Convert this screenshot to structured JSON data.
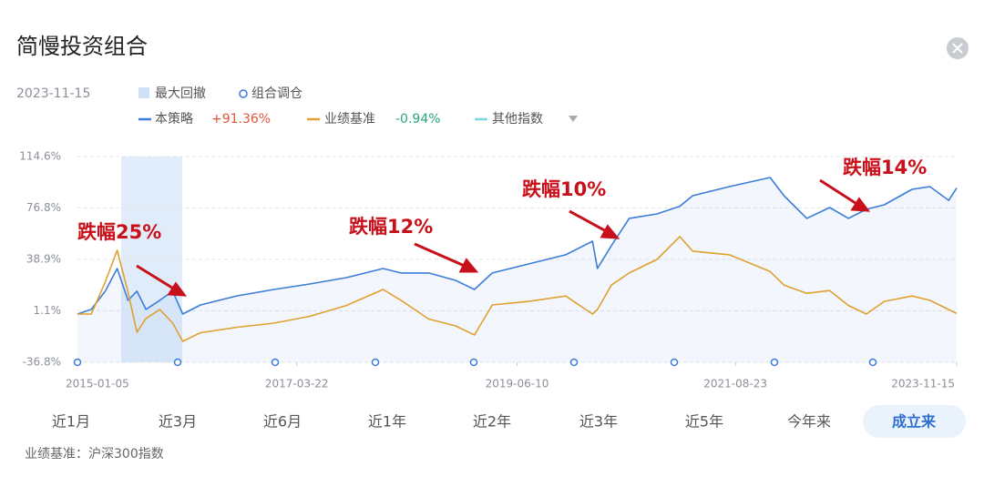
{
  "header": {
    "title": "简慢投资组合",
    "date": "2023-11-15"
  },
  "legend": {
    "drawdown": "最大回撤",
    "rebalance": "组合调仓",
    "strategy": "本策略",
    "strategy_return": "+91.36%",
    "benchmark": "业绩基准",
    "benchmark_return": "-0.94%",
    "other": "其他指数"
  },
  "chart_data": {
    "type": "line",
    "x": [
      2015.01,
      2015.15,
      2015.29,
      2015.41,
      2015.52,
      2015.61,
      2015.7,
      2015.84,
      2015.97,
      2016.07,
      2016.25,
      2016.62,
      2016.99,
      2017.35,
      2017.72,
      2018.09,
      2018.27,
      2018.55,
      2018.82,
      2019.01,
      2019.19,
      2019.56,
      2019.93,
      2020.2,
      2020.25,
      2020.39,
      2020.57,
      2020.85,
      2021.08,
      2021.21,
      2021.58,
      2021.99,
      2022.13,
      2022.36,
      2022.59,
      2022.78,
      2022.96,
      2023.14,
      2023.42,
      2023.6,
      2023.79,
      2023.87
    ],
    "series": [
      {
        "name": "本策略",
        "color": "#3b7dd8",
        "values": [
          -1.3,
          2.1,
          15.5,
          32.2,
          8.8,
          15.5,
          2.1,
          8.8,
          15.5,
          -1.3,
          5.4,
          12.1,
          16.8,
          20.8,
          25.5,
          32.2,
          28.9,
          28.9,
          23.5,
          16.8,
          28.9,
          35.6,
          42.3,
          52.3,
          32.2,
          49,
          69.1,
          72.4,
          78,
          85.8,
          92.5,
          99.2,
          85.8,
          69.1,
          77.1,
          69.1,
          75.8,
          79.1,
          90.5,
          92.5,
          82.4,
          91.4
        ]
      },
      {
        "name": "业绩基准",
        "color": "#e0a030",
        "values": [
          -1.3,
          -1.3,
          22.2,
          45.6,
          15,
          -14.7,
          -4.6,
          2,
          -8,
          -21.4,
          -15,
          -11,
          -8,
          -3,
          5,
          16.8,
          8.8,
          -5,
          -10,
          -16.7,
          5.4,
          8,
          12,
          -1.3,
          2,
          20,
          28.9,
          38.9,
          55.7,
          45,
          42.3,
          30,
          20,
          14,
          16,
          5,
          -1.3,
          8,
          12,
          8.8,
          2,
          -0.9
        ]
      }
    ],
    "xlim": [
      2015.01,
      2023.87
    ],
    "xticks": [
      {
        "value": 2015.01,
        "label": "2015-01-05"
      },
      {
        "value": 2017.22,
        "label": "2017-03-22"
      },
      {
        "value": 2019.44,
        "label": "2019-06-10"
      },
      {
        "value": 2021.64,
        "label": "2021-08-23"
      },
      {
        "value": 2023.87,
        "label": "2023-11-15"
      }
    ],
    "ylim": [
      -36.8,
      114.6
    ],
    "yticks": [
      {
        "value": -36.8,
        "label": "-36.8%"
      },
      {
        "value": 1.1,
        "label": "1.1%"
      },
      {
        "value": 38.9,
        "label": "38.9%"
      },
      {
        "value": 76.8,
        "label": "76.8%"
      },
      {
        "value": 114.6,
        "label": "114.6%"
      }
    ],
    "grid": true,
    "annotations": [
      "跌幅25%",
      "跌幅12%",
      "跌幅10%",
      "跌幅14%"
    ]
  },
  "tabs": [
    "近1月",
    "近3月",
    "近6月",
    "近1年",
    "近2年",
    "近3年",
    "近5年",
    "今年来",
    "成立来"
  ],
  "footnote": "业绩基准：沪深300指数"
}
